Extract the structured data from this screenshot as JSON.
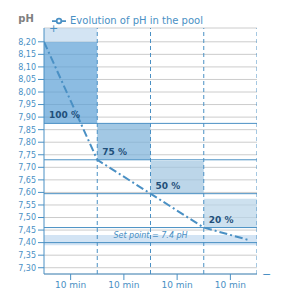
{
  "chart_data": {
    "type": "line",
    "ylabel": "pH",
    "x": [
      0,
      1,
      2,
      3,
      3.85
    ],
    "series": [
      {
        "name": "Evolution of pH in the pool",
        "color": "#4a90c4",
        "line_style": "dashdot",
        "values": [
          8.2,
          7.73,
          7.595,
          7.46,
          7.41
        ]
      }
    ],
    "xlim": [
      0,
      4
    ],
    "xticks": [
      {
        "value": 0.5,
        "label": "10 min"
      },
      {
        "value": 1.5,
        "label": "10 min"
      },
      {
        "value": 2.5,
        "label": "10 min"
      },
      {
        "value": 3.5,
        "label": "10 min"
      }
    ],
    "ylim": [
      7.275,
      8.255
    ],
    "yticks": [
      {
        "value": 7.3,
        "label": "7,30"
      },
      {
        "value": 7.35,
        "label": "7,35"
      },
      {
        "value": 7.4,
        "label": "7,40"
      },
      {
        "value": 7.45,
        "label": "7,45"
      },
      {
        "value": 7.5,
        "label": "7,50"
      },
      {
        "value": 7.55,
        "label": "7,55"
      },
      {
        "value": 7.6,
        "label": "7,60"
      },
      {
        "value": 7.65,
        "label": "7,65"
      },
      {
        "value": 7.7,
        "label": "7,70"
      },
      {
        "value": 7.75,
        "label": "7,75"
      },
      {
        "value": 7.8,
        "label": "7,80"
      },
      {
        "value": 7.85,
        "label": "7,85"
      },
      {
        "value": 7.9,
        "label": "7,90"
      },
      {
        "value": 7.95,
        "label": "7,95"
      },
      {
        "value": 8.0,
        "label": "8,00"
      },
      {
        "value": 8.05,
        "label": "8,05"
      },
      {
        "value": 8.1,
        "label": "8,10"
      },
      {
        "value": 8.15,
        "label": "8,15"
      },
      {
        "value": 8.2,
        "label": "8,20"
      }
    ],
    "grid": "y",
    "legend": "top",
    "color": "#4a90c4",
    "vlines": [
      1,
      2,
      3,
      4
    ],
    "hlines": [
      7.875,
      7.73,
      7.595,
      7.46
    ],
    "setpoint": {
      "value": 7.4,
      "label": "Set point = 7.4 pH"
    },
    "regions": [
      {
        "x": [
          0,
          1
        ],
        "y": [
          7.875,
          8.2
        ],
        "label": "100 %",
        "color": "#5b9fd5"
      },
      {
        "x": [
          0,
          1
        ],
        "y": [
          8.2,
          8.255
        ],
        "color": "#c0d8ee"
      },
      {
        "x": [
          1,
          2
        ],
        "y": [
          7.73,
          7.875
        ],
        "label": "75 %",
        "color": "#7ab0d8"
      },
      {
        "x": [
          2,
          3
        ],
        "y": [
          7.595,
          7.725
        ],
        "label": "50 %",
        "color": "#a0c4e0"
      },
      {
        "x": [
          3,
          4
        ],
        "y": [
          7.46,
          7.575
        ],
        "label": "20 %",
        "color": "#b8d4e8"
      },
      {
        "x": [
          0,
          4
        ],
        "y": [
          7.39,
          7.43
        ],
        "color": "#c0d8f0"
      }
    ],
    "annotations": [
      {
        "text": "+",
        "x": 0,
        "y": 8.255
      },
      {
        "text": "−",
        "x": 4,
        "y": 7.275
      }
    ]
  }
}
